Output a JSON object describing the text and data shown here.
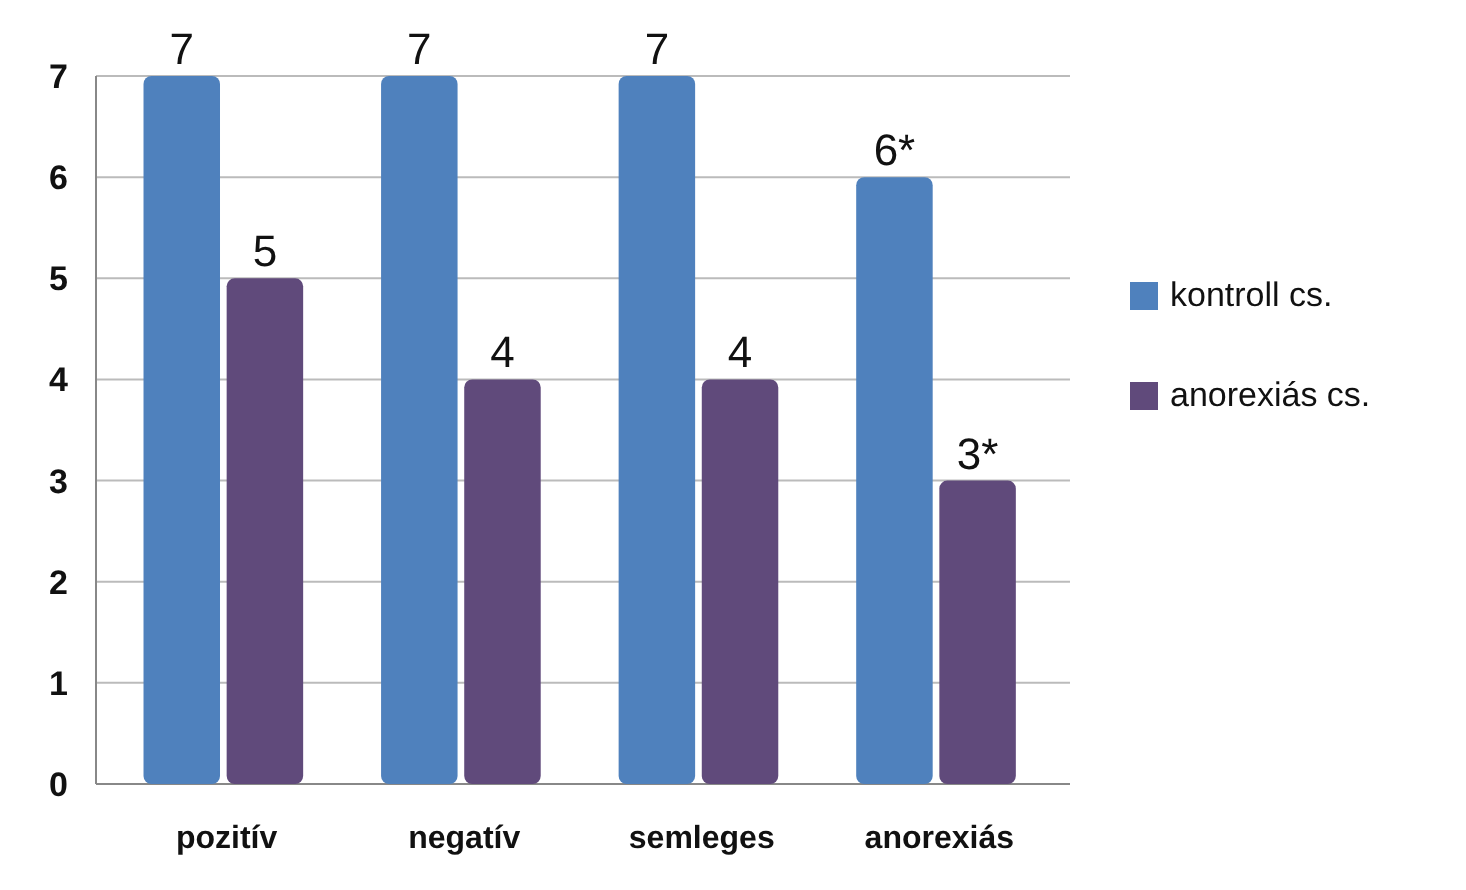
{
  "chart_data": {
    "type": "bar",
    "categories": [
      "pozitív",
      "negatív",
      "semleges",
      "anorexiás"
    ],
    "series": [
      {
        "name": "kontroll cs.",
        "color": "#4f81bd",
        "values": [
          7,
          7,
          7,
          6
        ],
        "value_labels": [
          "7",
          "7",
          "7",
          "6*"
        ]
      },
      {
        "name": "anorexiás cs.",
        "color": "#604a7b",
        "values": [
          5,
          4,
          4,
          3
        ],
        "value_labels": [
          "5",
          "4",
          "4",
          "3*"
        ]
      }
    ],
    "ylim": [
      0,
      7
    ],
    "yticks": [
      0,
      1,
      2,
      3,
      4,
      5,
      6,
      7
    ],
    "grid": "y",
    "legend": "right"
  }
}
